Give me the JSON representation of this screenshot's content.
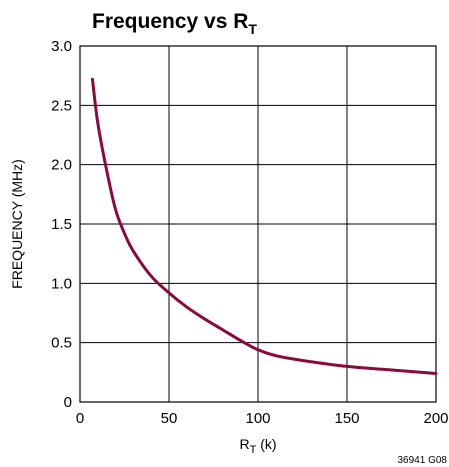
{
  "chart_data": {
    "type": "line",
    "title": {
      "main": "Frequency vs R",
      "sub": "T"
    },
    "xlabel": {
      "main": "R",
      "sub": "T",
      "unit": " (k)"
    },
    "ylabel": "FREQUENCY (MHz)",
    "xlim": [
      0,
      200
    ],
    "ylim": [
      0,
      3.0
    ],
    "x_ticks": [
      "0",
      "50",
      "100",
      "150",
      "200"
    ],
    "y_ticks": [
      "0",
      "0.5",
      "1.0",
      "1.5",
      "2.0",
      "2.5",
      "3.0"
    ],
    "grid": true,
    "series": [
      {
        "color": "#8b0a3a",
        "x": [
          7,
          10,
          15,
          20,
          25,
          30,
          40,
          50,
          60,
          70,
          80,
          90,
          100,
          110,
          125,
          150,
          175,
          200
        ],
        "y": [
          2.72,
          2.35,
          1.95,
          1.62,
          1.42,
          1.27,
          1.06,
          0.92,
          0.8,
          0.7,
          0.61,
          0.52,
          0.44,
          0.39,
          0.35,
          0.3,
          0.27,
          0.24
        ]
      }
    ],
    "code": "36941 G08"
  }
}
